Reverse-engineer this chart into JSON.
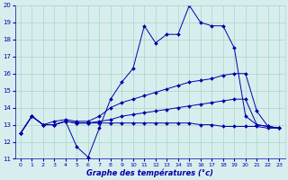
{
  "xlabel": "Graphe des températures (°c)",
  "bg_color": "#d8eeee",
  "grid_color": "#aaddcc",
  "line_color": "#0000aa",
  "xlim": [
    -0.5,
    23.5
  ],
  "ylim": [
    11,
    20
  ],
  "xticks": [
    0,
    1,
    2,
    3,
    4,
    5,
    6,
    7,
    8,
    9,
    10,
    11,
    12,
    13,
    14,
    15,
    16,
    17,
    18,
    19,
    20,
    21,
    22,
    23
  ],
  "yticks": [
    11,
    12,
    13,
    14,
    15,
    16,
    17,
    18,
    19,
    20
  ],
  "series": [
    {
      "x": [
        0,
        1,
        2,
        3,
        4,
        5,
        6,
        7,
        8,
        9,
        10,
        11,
        12,
        13,
        14,
        15,
        16,
        17,
        18,
        19,
        20,
        21,
        22,
        23
      ],
      "y": [
        12.5,
        13.5,
        13.0,
        13.0,
        13.2,
        11.7,
        11.1,
        12.8,
        14.5,
        15.5,
        16.3,
        18.8,
        17.8,
        18.3,
        18.3,
        20.0,
        19.0,
        18.8,
        18.8,
        17.5,
        13.5,
        13.0,
        12.9,
        12.8
      ]
    },
    {
      "x": [
        0,
        1,
        2,
        3,
        4,
        5,
        6,
        7,
        8,
        9,
        10,
        11,
        12,
        13,
        14,
        15,
        16,
        17,
        18,
        19,
        20,
        21,
        22,
        23
      ],
      "y": [
        12.5,
        13.5,
        13.0,
        13.2,
        13.3,
        13.2,
        13.2,
        13.5,
        14.0,
        14.3,
        14.5,
        14.7,
        14.9,
        15.1,
        15.3,
        15.5,
        15.6,
        15.7,
        15.9,
        16.0,
        16.0,
        13.8,
        12.9,
        12.8
      ]
    },
    {
      "x": [
        0,
        1,
        2,
        3,
        4,
        5,
        6,
        7,
        8,
        9,
        10,
        11,
        12,
        13,
        14,
        15,
        16,
        17,
        18,
        19,
        20,
        21,
        22,
        23
      ],
      "y": [
        12.5,
        13.5,
        13.0,
        13.0,
        13.2,
        13.1,
        13.1,
        13.2,
        13.3,
        13.5,
        13.6,
        13.7,
        13.8,
        13.9,
        14.0,
        14.1,
        14.2,
        14.3,
        14.4,
        14.5,
        14.5,
        13.0,
        12.9,
        12.8
      ]
    },
    {
      "x": [
        0,
        1,
        2,
        3,
        4,
        5,
        6,
        7,
        8,
        9,
        10,
        11,
        12,
        13,
        14,
        15,
        16,
        17,
        18,
        19,
        20,
        21,
        22,
        23
      ],
      "y": [
        12.5,
        13.5,
        13.0,
        13.0,
        13.2,
        13.1,
        13.1,
        13.1,
        13.1,
        13.1,
        13.1,
        13.1,
        13.1,
        13.1,
        13.1,
        13.1,
        13.0,
        13.0,
        12.9,
        12.9,
        12.9,
        12.9,
        12.8,
        12.8
      ]
    }
  ]
}
